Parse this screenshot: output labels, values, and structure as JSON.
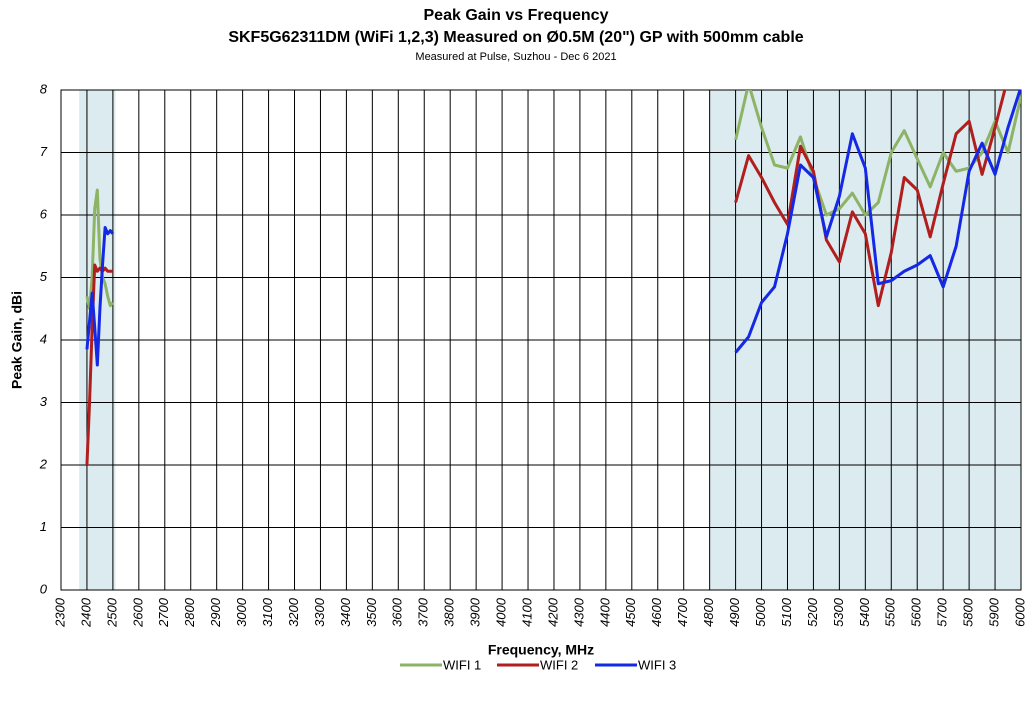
{
  "chart_data": {
    "type": "line",
    "title": "Peak Gain vs Frequency",
    "subtitle": "SKF5G62311DM (WiFi 1,2,3) Measured on Ø0.5M (20\") GP with 500mm cable",
    "note": "Measured at Pulse, Suzhou  - Dec 6 2021",
    "x_label": "Frequency, MHz",
    "y_label": "Peak Gain, dBi",
    "x": [
      2400,
      2410,
      2420,
      2430,
      2440,
      2450,
      2460,
      2470,
      2480,
      2490,
      2500,
      4800,
      4900,
      4950,
      5000,
      5050,
      5100,
      5150,
      5200,
      5250,
      5300,
      5350,
      5400,
      5450,
      5500,
      5550,
      5600,
      5650,
      5700,
      5750,
      5800,
      5850,
      5900,
      5950,
      6000
    ],
    "series": [
      {
        "name": "WIFI 1",
        "color": "#8db366",
        "values": [
          4.7,
          4.5,
          5.0,
          6.1,
          6.4,
          5.3,
          5.0,
          4.9,
          4.7,
          4.55,
          4.6,
          null,
          7.2,
          8.1,
          7.4,
          6.8,
          6.75,
          7.25,
          6.6,
          6.0,
          6.1,
          6.35,
          6.0,
          6.2,
          7.0,
          7.35,
          6.9,
          6.45,
          7.0,
          6.7,
          6.75,
          7.0,
          7.5,
          7.0,
          7.9
        ]
      },
      {
        "name": "WIFI 2",
        "color": "#b01e1e",
        "values": [
          2.0,
          3.0,
          4.2,
          5.2,
          5.1,
          5.15,
          5.1,
          5.15,
          5.1,
          5.1,
          5.1,
          null,
          6.2,
          6.95,
          6.6,
          6.2,
          5.85,
          7.1,
          6.7,
          5.6,
          5.25,
          6.05,
          5.7,
          4.55,
          5.4,
          6.6,
          6.4,
          5.65,
          6.5,
          7.3,
          7.5,
          6.65,
          7.4,
          8.2,
          8.0
        ]
      },
      {
        "name": "WIFI 3",
        "color": "#1428e6",
        "values": [
          3.85,
          4.3,
          4.75,
          4.2,
          3.6,
          4.5,
          5.2,
          5.8,
          5.7,
          5.75,
          5.7,
          null,
          3.8,
          4.05,
          4.6,
          4.85,
          5.7,
          6.8,
          6.6,
          5.65,
          6.3,
          7.3,
          6.75,
          4.9,
          4.95,
          5.1,
          5.2,
          5.35,
          4.85,
          5.5,
          6.7,
          7.15,
          6.65,
          7.4,
          8.05
        ]
      }
    ],
    "shaded_ranges": [
      [
        2370,
        2510
      ],
      [
        4800,
        6000
      ]
    ],
    "xlim": [
      2300,
      6000
    ],
    "xticks": [
      2300,
      2400,
      2500,
      2600,
      2700,
      2800,
      2900,
      3000,
      3100,
      3200,
      3300,
      3400,
      3500,
      3600,
      3700,
      3800,
      3900,
      4000,
      4100,
      4200,
      4300,
      4400,
      4500,
      4600,
      4700,
      4800,
      4900,
      5000,
      5100,
      5200,
      5300,
      5400,
      5500,
      5600,
      5700,
      5800,
      5900,
      6000
    ],
    "ylim": [
      0,
      8
    ],
    "yticks": [
      0,
      1,
      2,
      3,
      4,
      5,
      6,
      7,
      8
    ],
    "grid": true,
    "legend": "bottom"
  }
}
